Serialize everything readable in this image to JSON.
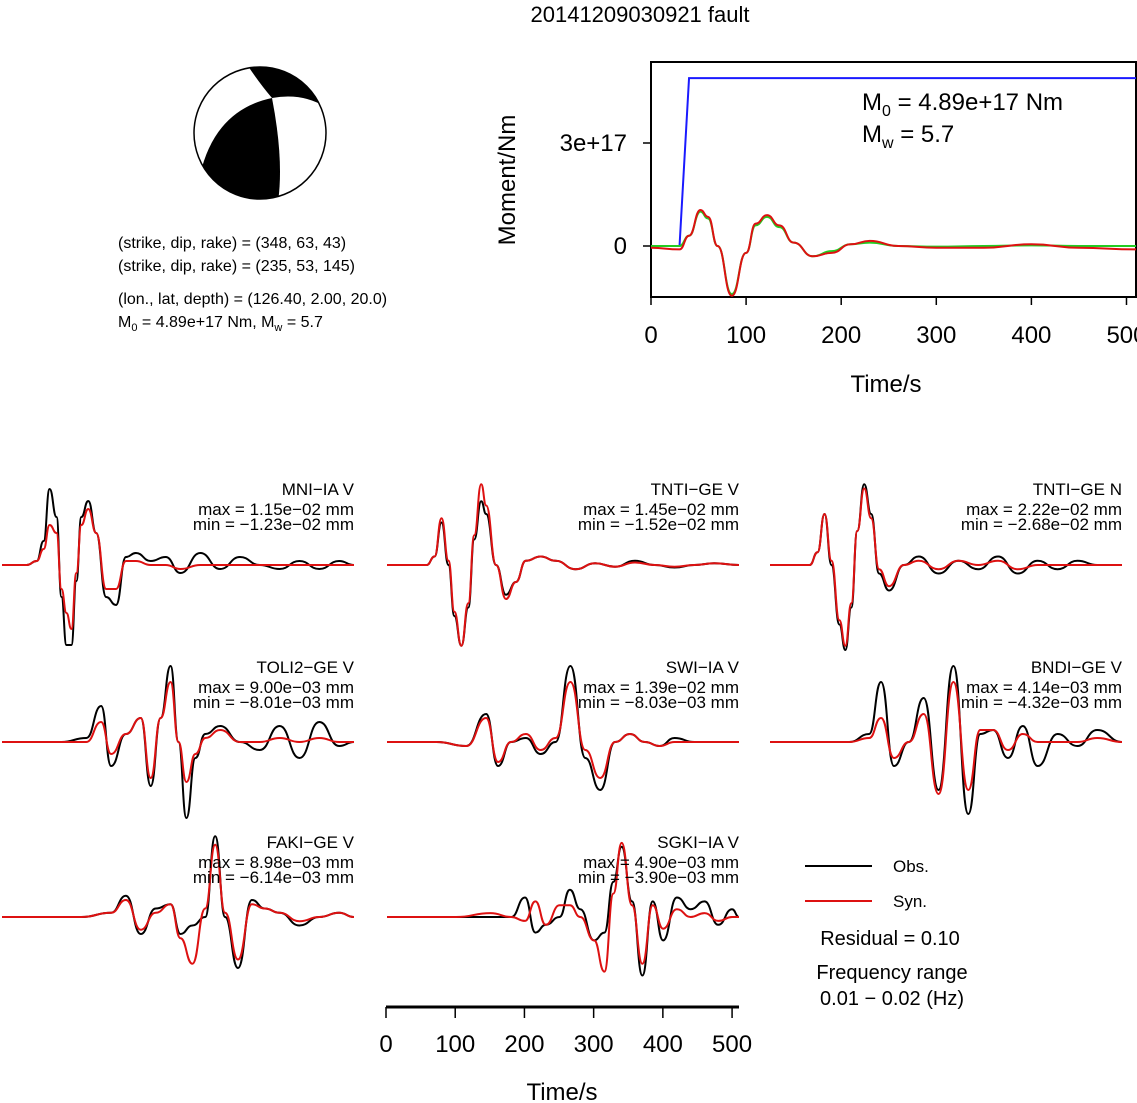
{
  "title": "20141209030921 fault",
  "colors": {
    "observed": "#000000",
    "synthetic": "#dd1111",
    "moment": "#1a1aff",
    "stf": "#22cc22",
    "beachball_fill": "#000000"
  },
  "mechanism": {
    "plane1": "(strike, dip, rake) = (348, 63, 43)",
    "plane2": "(strike, dip, rake) = (235, 53, 145)",
    "location": "(lon., lat, depth) = (126.40, 2.00, 20.0)",
    "m0_prefix": "M",
    "m0_sub": "0",
    "m0_text": " = 4.89e+17 Nm, M",
    "mw_sub": "w",
    "mw_text": " = 5.7"
  },
  "moment_plot": {
    "ylabel": "Moment/Nm",
    "xlabel": "Time/s",
    "m0_label_prefix": "M",
    "m0_label_sub": "0",
    "m0_label_value": " = 4.89e+17 Nm",
    "mw_label_prefix": "M",
    "mw_label_sub": "w",
    "mw_label_value": " = 5.7",
    "xticks": [
      "0",
      "100",
      "200",
      "300",
      "400",
      "500"
    ],
    "yticks": [
      "0",
      "3e+17"
    ]
  },
  "waveform_axis": {
    "xlabel": "Time/s",
    "xticks": [
      "0",
      "100",
      "200",
      "300",
      "400",
      "500"
    ]
  },
  "legend": {
    "obs": "Obs.",
    "syn": "Syn.",
    "residual": "Residual = 0.10",
    "freq_title": "Frequency range",
    "freq_value": "0.01 − 0.02 (Hz)"
  },
  "chart_data": [
    {
      "type": "line",
      "title": "20141209030921 fault",
      "xlabel": "Time/s",
      "ylabel": "Moment/Nm",
      "xlim": [
        0,
        510
      ],
      "series": [
        {
          "x": [
            0,
            30,
            40,
            510
          ],
          "values": [
            0,
            0,
            4.89e+17,
            4.89e+17
          ]
        },
        {
          "x": [
            0,
            30,
            40,
            52,
            60,
            70,
            85,
            100,
            110,
            122,
            135,
            150,
            170,
            190,
            210,
            230,
            260,
            300,
            350,
            400,
            450,
            510
          ],
          "values": [
            0,
            0,
            3e+16,
            1e+17,
            8e+16,
            0.0,
            -1.4e+17,
            -2e+16,
            6e+16,
            8.5e+16,
            5.5e+16,
            1e+16,
            -3e+16,
            -1.5e+16,
            5000000000000000.0,
            1e+16,
            0.0,
            -2000000000000000.0,
            0.0,
            2000000000000000.0,
            0.0,
            0.0
          ]
        },
        {
          "x": [
            0,
            30,
            40,
            52,
            60,
            70,
            85,
            100,
            110,
            122,
            135,
            150,
            170,
            190,
            210,
            230,
            260,
            300,
            350,
            400,
            450,
            510
          ],
          "values": [
            -5000000000000000.0,
            -1e+16,
            3e+16,
            1.05e+17,
            8.5e+16,
            0.0,
            -1.45e+17,
            -2e+16,
            6.5e+16,
            9e+16,
            6e+16,
            1e+16,
            -3e+16,
            -2e+16,
            5000000000000000.0,
            1.5e+16,
            0.0,
            -5000000000000000.0,
            -5000000000000000.0,
            5000000000000000.0,
            -5000000000000000.0,
            -1e+16
          ]
        }
      ]
    },
    {
      "type": "line",
      "station": "MNI−IA V",
      "max": "max = 1.15e−02 mm",
      "min": "min = −1.23e−02 mm",
      "x": [
        0,
        25,
        35,
        42,
        48,
        55,
        60,
        65,
        70,
        75,
        80,
        87,
        95,
        105,
        115,
        125,
        135,
        150,
        165,
        180,
        200,
        220,
        240,
        260,
        280,
        300,
        320,
        340,
        355
      ],
      "series": [
        {
          "name": "Obs.",
          "values": [
            0,
            0,
            0.05,
            0.3,
            0.95,
            0.6,
            -0.4,
            -1.0,
            -1.0,
            -0.2,
            0.6,
            0.8,
            0.4,
            -0.4,
            -0.5,
            0.1,
            0.15,
            0.05,
            0.1,
            -0.1,
            0.15,
            -0.05,
            0.1,
            0.0,
            -0.05,
            0.05,
            -0.05,
            0.05,
            0
          ]
        },
        {
          "name": "Syn.",
          "values": [
            0,
            0,
            0.05,
            0.2,
            0.5,
            0.4,
            -0.3,
            -0.6,
            -0.8,
            -0.1,
            0.5,
            0.7,
            0.4,
            -0.3,
            -0.3,
            0.05,
            0.05,
            0.0,
            0.0,
            -0.05,
            0.0,
            0.0,
            0.0,
            0.0,
            0.0,
            0.0,
            0.0,
            0.0,
            0
          ]
        }
      ]
    },
    {
      "type": "line",
      "station": "TNTI−GE V",
      "max": "max = 1.45e−02 mm",
      "min": "min = −1.52e−02 mm",
      "x": [
        0,
        30,
        40,
        48,
        55,
        62,
        68,
        75,
        82,
        88,
        95,
        100,
        110,
        120,
        130,
        140,
        155,
        170,
        190,
        210,
        230,
        250,
        270,
        290,
        310,
        330,
        355
      ],
      "series": [
        {
          "name": "Obs.",
          "values": [
            0,
            0,
            0.0,
            0.1,
            0.5,
            0.0,
            -0.6,
            -0.95,
            -0.5,
            0.3,
            0.75,
            0.6,
            0.0,
            -0.35,
            -0.2,
            0.05,
            0.1,
            0.05,
            -0.05,
            0.02,
            -0.02,
            0.05,
            0.0,
            -0.03,
            0.0,
            0.02,
            0
          ]
        },
        {
          "name": "Syn.",
          "values": [
            0,
            0,
            0.0,
            0.1,
            0.55,
            0.05,
            -0.55,
            -0.95,
            -0.45,
            0.35,
            0.95,
            0.7,
            0.0,
            -0.4,
            -0.2,
            0.05,
            0.1,
            0.05,
            -0.05,
            0.02,
            -0.02,
            0.03,
            0.0,
            -0.02,
            0.0,
            0.02,
            0
          ]
        }
      ]
    },
    {
      "type": "line",
      "station": "TNTI−GE N",
      "max": "max = 2.22e−02 mm",
      "min": "min = −2.68e−02 mm",
      "x": [
        0,
        30,
        40,
        48,
        55,
        62,
        70,
        76,
        82,
        88,
        95,
        102,
        110,
        120,
        135,
        150,
        170,
        190,
        210,
        230,
        250,
        270,
        290,
        310,
        330,
        355
      ],
      "series": [
        {
          "name": "Obs.",
          "values": [
            0,
            0,
            0.0,
            0.15,
            0.6,
            0.0,
            -0.7,
            -1.0,
            -0.5,
            0.4,
            0.95,
            0.6,
            -0.1,
            -0.3,
            0.0,
            0.1,
            -0.1,
            0.05,
            -0.05,
            0.1,
            -0.1,
            0.05,
            -0.05,
            0.05,
            0.0,
            0
          ]
        },
        {
          "name": "Syn.",
          "values": [
            0,
            0,
            0.0,
            0.15,
            0.6,
            0.05,
            -0.65,
            -0.95,
            -0.45,
            0.4,
            0.9,
            0.55,
            -0.05,
            -0.25,
            0.0,
            0.05,
            -0.05,
            0.05,
            0.0,
            0.05,
            -0.05,
            0.0,
            0.0,
            0.0,
            0.0,
            0
          ]
        }
      ]
    },
    {
      "type": "line",
      "station": "TOLI2−GE V",
      "max": "max = 9.00e−03 mm",
      "min": "min = −8.01e−03 mm",
      "x": [
        0,
        60,
        85,
        100,
        110,
        125,
        140,
        150,
        160,
        170,
        178,
        186,
        195,
        205,
        220,
        240,
        260,
        280,
        300,
        320,
        340,
        355
      ],
      "series": [
        {
          "name": "Obs.",
          "values": [
            0,
            0,
            0.05,
            0.45,
            -0.3,
            0.1,
            0.3,
            -0.55,
            0.3,
            0.95,
            0.0,
            -0.95,
            -0.2,
            0.1,
            0.2,
            0.0,
            -0.1,
            0.2,
            -0.2,
            0.25,
            -0.05,
            0
          ]
        },
        {
          "name": "Syn.",
          "values": [
            0,
            0,
            0.0,
            0.25,
            -0.15,
            0.1,
            0.3,
            -0.45,
            0.3,
            0.75,
            0.0,
            -0.5,
            -0.15,
            0.05,
            0.15,
            0.0,
            0.0,
            0.05,
            0.0,
            0.05,
            0.0,
            0
          ]
        }
      ]
    },
    {
      "type": "line",
      "station": "SWI−IA V",
      "max": "max = 1.39e−02 mm",
      "min": "min = −8.03e−03 mm",
      "x": [
        0,
        50,
        80,
        100,
        112,
        125,
        140,
        155,
        170,
        185,
        200,
        215,
        230,
        245,
        260,
        275,
        290,
        310,
        330,
        355
      ],
      "series": [
        {
          "name": "Obs.",
          "values": [
            0,
            0,
            -0.05,
            0.35,
            -0.3,
            0.0,
            0.05,
            -0.15,
            0.0,
            0.95,
            -0.2,
            -0.6,
            0.0,
            0.1,
            0.0,
            -0.05,
            0.05,
            0.0,
            0.0,
            0
          ]
        },
        {
          "name": "Syn.",
          "values": [
            0,
            0,
            -0.05,
            0.3,
            -0.25,
            0.0,
            0.1,
            -0.1,
            0.05,
            0.75,
            -0.1,
            -0.45,
            0.0,
            0.1,
            0.0,
            -0.05,
            0.0,
            0.0,
            0.0,
            0
          ]
        }
      ]
    },
    {
      "type": "line",
      "station": "BNDI−GE V",
      "max": "max = 4.14e−03 mm",
      "min": "min = −4.32e−03 mm",
      "x": [
        0,
        80,
        100,
        112,
        125,
        140,
        155,
        170,
        185,
        200,
        212,
        225,
        240,
        255,
        270,
        290,
        310,
        330,
        355
      ],
      "series": [
        {
          "name": "Obs.",
          "values": [
            0,
            0,
            0.1,
            0.75,
            -0.3,
            0.0,
            0.55,
            -0.6,
            0.95,
            -0.9,
            0.1,
            0.15,
            -0.2,
            0.2,
            -0.3,
            0.1,
            -0.05,
            0.15,
            0
          ]
        },
        {
          "name": "Syn.",
          "values": [
            0,
            0,
            0.05,
            0.3,
            -0.2,
            0.0,
            0.35,
            -0.65,
            0.75,
            -0.6,
            0.15,
            0.15,
            -0.1,
            0.1,
            0.0,
            0.0,
            0.0,
            0.05,
            0
          ]
        }
      ]
    },
    {
      "type": "line",
      "station": "FAKI−GE V",
      "max": "max = 8.98e−03 mm",
      "min": "min = −6.14e−03 mm",
      "x": [
        0,
        80,
        110,
        125,
        140,
        155,
        170,
        180,
        192,
        205,
        215,
        225,
        238,
        252,
        265,
        280,
        300,
        320,
        340,
        355
      ],
      "series": [
        {
          "name": "Obs.",
          "values": [
            0,
            0,
            0.05,
            0.25,
            -0.2,
            0.1,
            0.15,
            -0.2,
            -0.1,
            0.0,
            0.95,
            0.0,
            -0.6,
            0.2,
            0.1,
            0.05,
            -0.1,
            0.0,
            0.05,
            0
          ]
        },
        {
          "name": "Syn.",
          "values": [
            0,
            0,
            0.05,
            0.2,
            -0.15,
            0.05,
            0.15,
            -0.25,
            -0.55,
            0.1,
            0.85,
            0.05,
            -0.5,
            0.15,
            0.1,
            0.05,
            -0.05,
            0.0,
            0.05,
            0
          ]
        }
      ]
    },
    {
      "type": "line",
      "station": "SGKI−IA V",
      "max": "max = 4.90e−03 mm",
      "min": "min = −3.90e−03 mm",
      "xlabel": "Time/s",
      "xlim": [
        0,
        510
      ],
      "x": [
        0,
        100,
        150,
        180,
        200,
        215,
        230,
        250,
        265,
        280,
        300,
        315,
        328,
        340,
        355,
        370,
        385,
        400,
        420,
        440,
        460,
        480,
        500,
        510
      ],
      "series": [
        {
          "name": "Obs.",
          "values": [
            0,
            0,
            0.0,
            0.0,
            0.25,
            -0.2,
            -0.1,
            0.0,
            0.35,
            0.1,
            -0.3,
            -0.2,
            0.45,
            0.9,
            0.2,
            -0.75,
            0.2,
            -0.3,
            0.25,
            0.1,
            0.2,
            -0.1,
            0.1,
            0
          ]
        },
        {
          "name": "Syn.",
          "values": [
            0,
            0,
            0.05,
            0.0,
            -0.05,
            0.2,
            -0.1,
            0.15,
            0.15,
            0.0,
            -0.3,
            -0.7,
            0.3,
            0.95,
            0.15,
            -0.6,
            0.15,
            -0.15,
            0.1,
            0.0,
            0.05,
            -0.05,
            0.0,
            0
          ]
        }
      ]
    }
  ]
}
